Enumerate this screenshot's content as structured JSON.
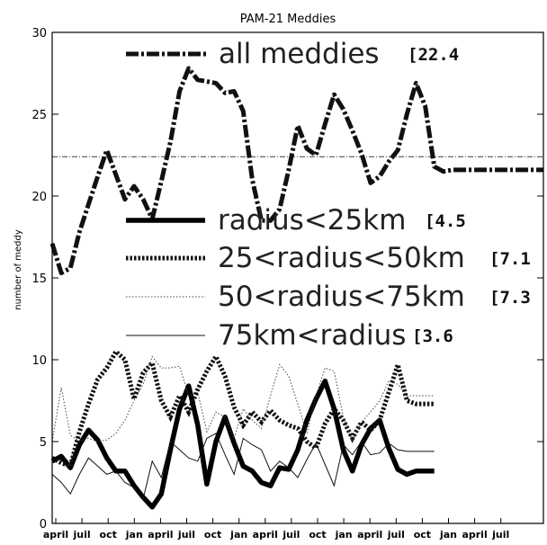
{
  "chart_data": {
    "type": "line",
    "title": "PAM-21 Meddies",
    "xlabel": "",
    "ylabel": "number of meddy",
    "ylim": [
      0,
      30
    ],
    "yticks": [
      "0",
      "5",
      "10",
      "15",
      "20",
      "25",
      "30"
    ],
    "x_tick_labels": [
      "april",
      "juil",
      "oct",
      "jan",
      "april",
      "juil",
      "oct",
      "jan",
      "april",
      "juil",
      "oct",
      "jan",
      "april",
      "juil",
      "oct",
      "jan",
      "april",
      "juil"
    ],
    "mean_line": 22.4,
    "series": [
      {
        "name": "all meddies",
        "mean_label": "[22.4",
        "style": "dashdot-thick",
        "x": [
          0,
          1,
          2,
          3,
          4,
          5,
          6,
          7,
          8,
          9,
          10,
          11,
          12,
          13,
          14,
          15,
          16,
          17,
          18,
          19,
          20,
          21,
          22,
          23,
          24,
          25,
          26,
          27,
          28,
          29,
          30,
          31,
          32,
          33,
          34,
          35,
          36,
          37,
          38,
          39,
          40,
          41,
          42,
          43,
          44,
          45,
          46,
          47,
          48,
          49,
          50,
          51,
          52,
          53,
          54
        ],
        "values": [
          17.1,
          15.3,
          15.6,
          17.8,
          19.5,
          21.2,
          22.8,
          21.3,
          19.8,
          20.6,
          19.8,
          18.6,
          20.9,
          23.3,
          26.4,
          27.8,
          27.1,
          27.0,
          26.9,
          26.3,
          26.4,
          25.2,
          21.0,
          18.5,
          18.5,
          19.2,
          21.6,
          24.3,
          22.9,
          22.5,
          24.4,
          26.2,
          25.3,
          24.0,
          22.6,
          20.8,
          21.2,
          22.1,
          22.8,
          25.0,
          26.9,
          25.5,
          21.8,
          21.5,
          21.6,
          21.6,
          21.6,
          21.6,
          21.6,
          21.6,
          21.6,
          21.6,
          21.6,
          21.6,
          21.6
        ]
      },
      {
        "name": "radius<25km",
        "mean_label": "[4.5",
        "style": "solid-thick",
        "x": [
          0,
          1,
          2,
          3,
          4,
          5,
          6,
          7,
          8,
          9,
          10,
          11,
          12,
          13,
          14,
          15,
          16,
          17,
          18,
          19,
          20,
          21,
          22,
          23,
          24,
          25,
          26,
          27,
          28,
          29,
          30,
          31,
          32,
          33,
          34,
          35,
          36,
          37,
          38,
          39,
          40,
          41,
          42
        ],
        "values": [
          3.8,
          4.1,
          3.4,
          4.8,
          5.7,
          5.1,
          4.0,
          3.2,
          3.2,
          2.3,
          1.6,
          1.0,
          1.8,
          4.5,
          7.0,
          8.4,
          6.0,
          2.4,
          5.0,
          6.5,
          4.9,
          3.5,
          3.2,
          2.5,
          2.3,
          3.4,
          3.3,
          4.5,
          6.3,
          7.6,
          8.7,
          7.0,
          4.5,
          3.2,
          4.8,
          5.8,
          6.3,
          4.6,
          3.3,
          3.0,
          3.2,
          3.2,
          3.2
        ]
      },
      {
        "name": "25<radius<50km",
        "mean_label": "[7.1",
        "style": "dotted-thick",
        "x": [
          0,
          1,
          2,
          3,
          4,
          5,
          6,
          7,
          8,
          9,
          10,
          11,
          12,
          13,
          14,
          15,
          16,
          17,
          18,
          19,
          20,
          21,
          22,
          23,
          24,
          25,
          26,
          27,
          28,
          29,
          30,
          31,
          32,
          33,
          34,
          35,
          36,
          37,
          38,
          39,
          40,
          41,
          42
        ],
        "values": [
          4.0,
          3.7,
          3.5,
          5.6,
          7.3,
          8.8,
          9.5,
          10.5,
          10.0,
          7.6,
          9.2,
          9.8,
          7.5,
          6.5,
          7.8,
          6.8,
          8.2,
          9.3,
          10.2,
          9.0,
          7.1,
          6.0,
          6.8,
          6.2,
          6.9,
          6.3,
          6.0,
          5.8,
          5.0,
          4.6,
          6.1,
          7.0,
          6.3,
          5.2,
          6.2,
          5.7,
          6.3,
          8.0,
          9.7,
          7.5,
          7.3,
          7.3,
          7.3
        ]
      },
      {
        "name": "50<radius<75km",
        "mean_label": "[7.3",
        "style": "dotted-thin",
        "x": [
          0,
          1,
          2,
          3,
          4,
          5,
          6,
          7,
          8,
          9,
          10,
          11,
          12,
          13,
          14,
          15,
          16,
          17,
          18,
          19,
          20,
          21,
          22,
          23,
          24,
          25,
          26,
          27,
          28,
          29,
          30,
          31,
          32,
          33,
          34,
          35,
          36,
          37,
          38,
          39,
          40,
          41,
          42
        ],
        "values": [
          5.0,
          8.3,
          5.4,
          5.0,
          5.2,
          5.0,
          5.1,
          5.5,
          6.3,
          7.5,
          8.5,
          10.2,
          9.5,
          9.5,
          9.6,
          7.8,
          8.0,
          5.6,
          6.8,
          6.5,
          5.2,
          7.0,
          6.3,
          5.8,
          7.8,
          9.7,
          9.0,
          7.3,
          5.5,
          7.8,
          9.5,
          9.3,
          6.5,
          5.0,
          6.2,
          6.8,
          7.5,
          8.7,
          8.5,
          7.8,
          7.8,
          7.8,
          7.8
        ]
      },
      {
        "name": "75km<radius",
        "mean_label": "[3.6",
        "style": "solid-thin",
        "x": [
          0,
          1,
          2,
          3,
          4,
          5,
          6,
          7,
          8,
          9,
          10,
          11,
          12,
          13,
          14,
          15,
          16,
          17,
          18,
          19,
          20,
          21,
          22,
          23,
          24,
          25,
          26,
          27,
          28,
          29,
          30,
          31,
          32,
          33,
          34,
          35,
          36,
          37,
          38,
          39,
          40,
          41,
          42
        ],
        "values": [
          3.0,
          2.5,
          1.8,
          3.0,
          4.0,
          3.5,
          3.0,
          3.2,
          2.5,
          2.2,
          1.5,
          3.8,
          2.8,
          5.0,
          4.5,
          4.0,
          3.8,
          5.2,
          5.5,
          4.2,
          3.0,
          5.2,
          4.8,
          4.5,
          3.2,
          3.8,
          3.4,
          2.8,
          3.9,
          4.9,
          3.6,
          2.3,
          4.8,
          4.2,
          5.0,
          4.2,
          4.3,
          4.9,
          4.5,
          4.4,
          4.4,
          4.4,
          4.4
        ]
      }
    ]
  }
}
